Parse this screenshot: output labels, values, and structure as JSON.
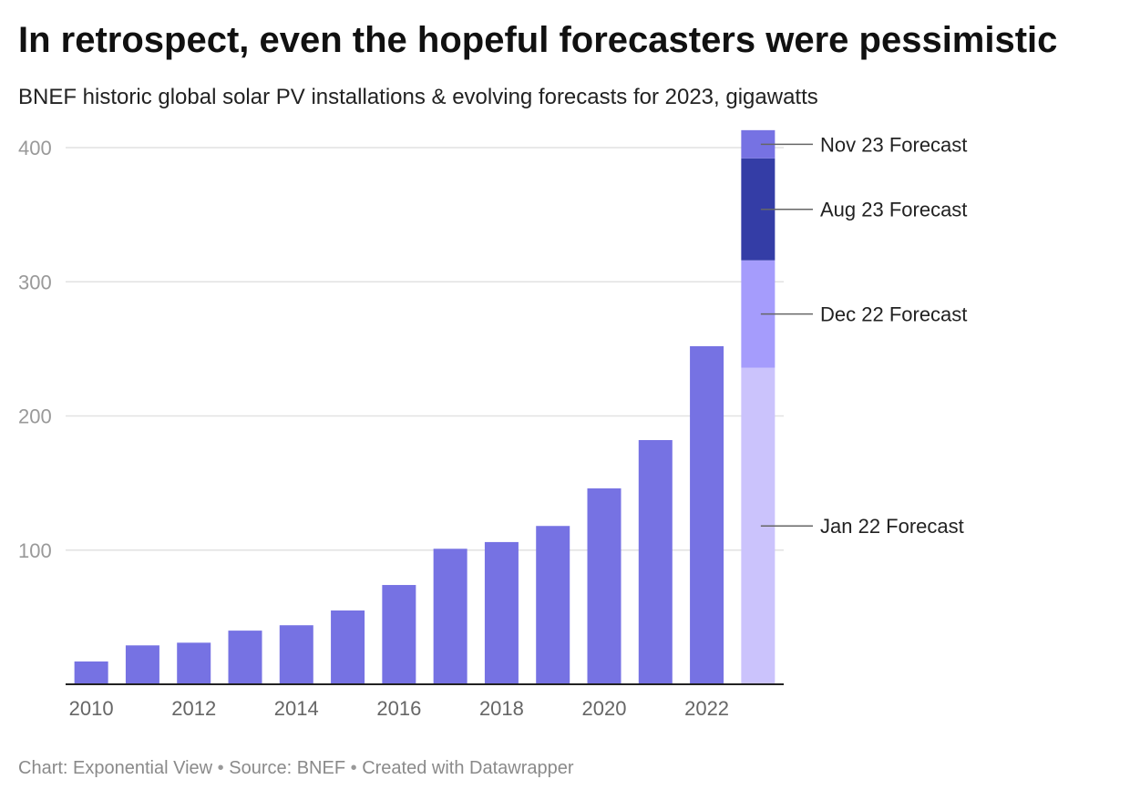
{
  "title": "In retrospect, even the hopeful forecasters were pessimistic",
  "subtitle": "BNEF historic global solar PV installations & evolving forecasts for 2023, gigawatts",
  "footer": {
    "chart_credit": "Chart: Exponential View",
    "source": "Source: BNEF",
    "tool": "Created with Datawrapper",
    "separator": "•"
  },
  "chart_data": {
    "type": "bar",
    "title": "In retrospect, even the hopeful forecasters were pessimistic",
    "subtitle": "BNEF historic global solar PV installations & evolving forecasts for 2023, gigawatts",
    "xlabel": "",
    "ylabel": "",
    "ylim": [
      0,
      413
    ],
    "y_ticks": [
      100,
      200,
      300,
      400
    ],
    "x_tick_labels": [
      "2010",
      "2012",
      "2014",
      "2016",
      "2018",
      "2020",
      "2022"
    ],
    "grid": true,
    "categories": [
      "2010",
      "2011",
      "2012",
      "2013",
      "2014",
      "2015",
      "2016",
      "2017",
      "2018",
      "2019",
      "2020",
      "2021",
      "2022",
      "2023"
    ],
    "values": [
      17,
      29,
      31,
      40,
      44,
      55,
      74,
      101,
      106,
      118,
      146,
      182,
      252,
      null
    ],
    "bar_color": "#7672e3",
    "forecasts_2023": [
      {
        "label": "Jan 22 Forecast",
        "value": 236,
        "color": "#cbc3fc"
      },
      {
        "label": "Dec 22 Forecast",
        "value": 316,
        "color": "#a59cfc"
      },
      {
        "label": "Aug 23 Forecast",
        "value": 392,
        "color": "#343da6"
      },
      {
        "label": "Nov 23 Forecast",
        "value": 413,
        "color": "#7672e3"
      }
    ],
    "annotation_color": "#666666"
  }
}
